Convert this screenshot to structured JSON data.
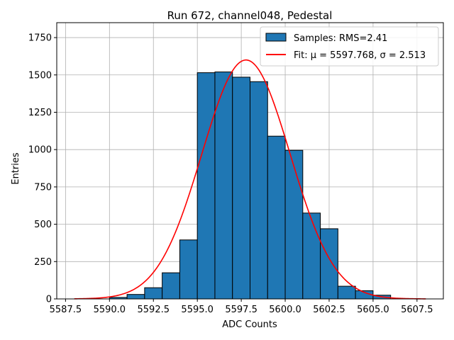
{
  "chart_data": {
    "type": "bar",
    "title": "Run 672, channel048, Pedestal",
    "xlabel": "ADC Counts",
    "ylabel": "Entries",
    "xlim": [
      5587.0,
      5609.0
    ],
    "ylim": [
      0,
      1850
    ],
    "xticks": [
      5587.5,
      5590.0,
      5592.5,
      5595.0,
      5597.5,
      5600.0,
      5602.5,
      5605.0,
      5607.5
    ],
    "xtick_labels": [
      "5587.5",
      "5590.0",
      "5592.5",
      "5595.0",
      "5597.5",
      "5600.0",
      "5602.5",
      "5605.0",
      "5607.5"
    ],
    "yticks": [
      0,
      250,
      500,
      750,
      1000,
      1250,
      1500,
      1750
    ],
    "ytick_labels": [
      "0",
      "250",
      "500",
      "750",
      "1000",
      "1250",
      "1500",
      "1750"
    ],
    "grid": true,
    "legend_position": "top-right",
    "colors": {
      "bars": "#1f77b4",
      "bar_edge": "#000000",
      "fit": "#ff0000"
    },
    "histogram": {
      "name": "Samples: RMS=2.41",
      "bin_edges": [
        5590,
        5591,
        5592,
        5593,
        5594,
        5595,
        5596,
        5597,
        5598,
        5599,
        5600,
        5601,
        5602,
        5603,
        5604,
        5605,
        5606
      ],
      "counts": [
        10,
        30,
        75,
        175,
        395,
        1515,
        1520,
        1485,
        1455,
        1090,
        995,
        575,
        470,
        85,
        55,
        25
      ]
    },
    "fit": {
      "name": "Fit: μ = 5597.768, σ = 2.513",
      "mu": 5597.768,
      "sigma": 2.513,
      "amplitude": 1600,
      "x_range": [
        5588,
        5608
      ]
    }
  }
}
